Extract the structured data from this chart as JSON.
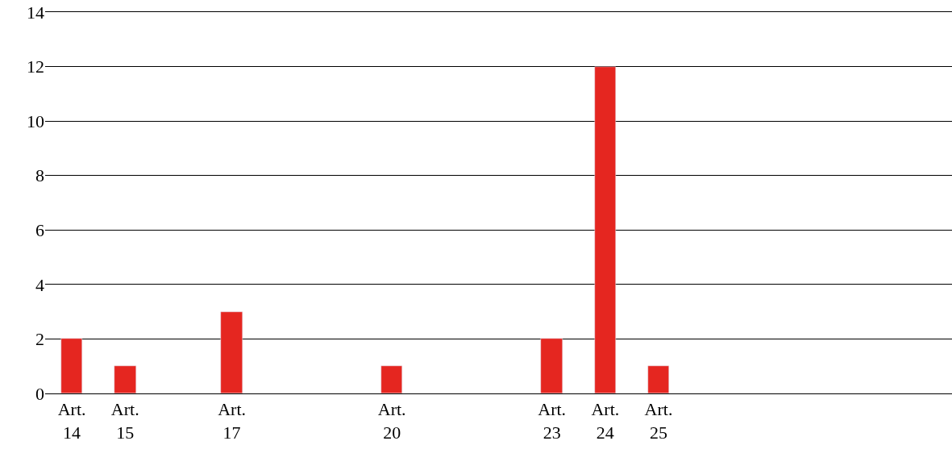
{
  "chart_data": {
    "type": "bar",
    "categories": [
      "Art. 14",
      "Art. 15",
      null,
      "Art. 17",
      null,
      null,
      "Art. 20",
      null,
      null,
      "Art. 23",
      "Art. 24",
      "Art. 25",
      null,
      null,
      null,
      null,
      null
    ],
    "values": [
      2,
      1,
      null,
      3,
      null,
      null,
      1,
      null,
      null,
      2,
      12,
      1,
      null,
      null,
      null,
      null,
      null
    ],
    "color": "#e52620",
    "ylim": [
      0,
      14
    ],
    "yticks": [
      0,
      2,
      4,
      6,
      8,
      10,
      12,
      14
    ],
    "grid": "y"
  }
}
